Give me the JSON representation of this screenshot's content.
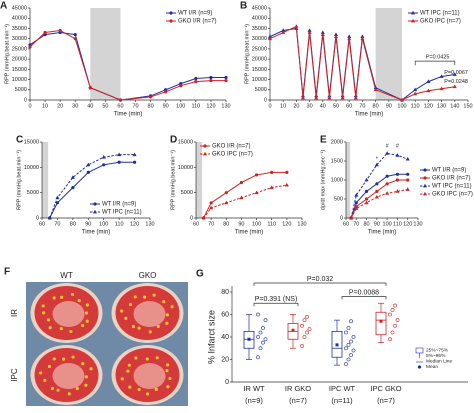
{
  "chart_data": [
    {
      "type": "line",
      "label": "A",
      "xlabel": "Time (min)",
      "ylabel": "RPP (mmHg.beat.min⁻¹)",
      "xlim": [
        0,
        130
      ],
      "xticks": [
        0,
        10,
        20,
        30,
        40,
        50,
        60,
        70,
        80,
        90,
        100,
        110,
        120,
        130
      ],
      "ylim": [
        0,
        45000
      ],
      "yticks": [
        0,
        5000,
        10000,
        15000,
        20000,
        25000,
        30000,
        35000,
        40000,
        45000
      ],
      "shade": [
        40,
        60
      ],
      "legend": "upper right",
      "x": [
        0,
        10,
        20,
        30,
        40,
        60,
        80,
        90,
        100,
        110,
        120,
        130
      ],
      "series": [
        {
          "name": "WT I/R (n=9)",
          "color": "#1f2fa8",
          "dashed": false,
          "marker": "circle",
          "values": [
            27000,
            32000,
            33000,
            32000,
            6000,
            0,
            2000,
            5000,
            8000,
            10500,
            11000,
            11000
          ]
        },
        {
          "name": "GKO I/R (n=7)",
          "color": "#d42020",
          "dashed": false,
          "marker": "circle",
          "values": [
            26000,
            33000,
            34000,
            30000,
            6000,
            0,
            1500,
            4000,
            7000,
            9000,
            9500,
            9500
          ]
        }
      ],
      "annotations": []
    },
    {
      "type": "line",
      "label": "B",
      "xlabel": "Time (min)",
      "ylabel": "RPP (mmHg.beat.min⁻¹)",
      "xlim": [
        0,
        150
      ],
      "xticks": [
        0,
        10,
        20,
        30,
        40,
        50,
        60,
        70,
        80,
        90,
        100,
        110,
        120,
        130,
        140,
        150
      ],
      "ylim": [
        0,
        45000
      ],
      "yticks": [
        0,
        5000,
        10000,
        15000,
        20000,
        25000,
        30000,
        35000,
        40000,
        45000
      ],
      "shade": [
        80,
        100
      ],
      "legend": "upper right",
      "x": [
        0,
        10,
        20,
        25,
        30,
        35,
        40,
        45,
        50,
        55,
        60,
        65,
        70,
        80,
        100,
        110,
        120,
        130,
        140
      ],
      "series": [
        {
          "name": "WT IPC (n=11)",
          "color": "#1f2fa8",
          "dashed": false,
          "marker": "triangle",
          "values": [
            31000,
            34000,
            35000,
            2000,
            34000,
            2000,
            33000,
            2000,
            32000,
            2000,
            31000,
            2000,
            31000,
            6000,
            0,
            5000,
            9000,
            11500,
            12500
          ]
        },
        {
          "name": "GKO IPC (n=7)",
          "color": "#d42020",
          "dashed": false,
          "marker": "triangle",
          "values": [
            30000,
            33000,
            36000,
            1000,
            33000,
            1000,
            32000,
            1000,
            31000,
            1000,
            30000,
            1000,
            30000,
            5000,
            0,
            3000,
            4500,
            5500,
            6500
          ]
        }
      ],
      "annotations": [
        "P=0.0425",
        "P=0.0067",
        "P=0.0248"
      ]
    },
    {
      "type": "line",
      "label": "C",
      "xlabel": "Time (min)",
      "ylabel": "RPP (mmHg.beat.min⁻¹)",
      "xlim": [
        60,
        130
      ],
      "xticks": [
        60,
        70,
        80,
        90,
        100,
        110,
        120,
        130
      ],
      "ylim": [
        0,
        15000
      ],
      "yticks": [
        0,
        5000,
        10000,
        15000
      ],
      "shade": [
        60,
        64
      ],
      "legend": "lower right",
      "x": [
        65,
        70,
        80,
        90,
        100,
        110,
        120
      ],
      "series": [
        {
          "name": "WT I/R (n=9)",
          "color": "#1f2fa8",
          "dashed": false,
          "marker": "circle",
          "values": [
            0,
            3000,
            6000,
            9000,
            10500,
            11000,
            11000
          ]
        },
        {
          "name": "WT IPC (n=11)",
          "color": "#1f2fa8",
          "dashed": true,
          "marker": "triangle",
          "values": [
            0,
            4000,
            8000,
            10500,
            12000,
            12500,
            12500
          ]
        }
      ],
      "annotations": []
    },
    {
      "type": "line",
      "label": "D",
      "xlabel": "Time (min)",
      "ylabel": "RPP (mmHg.beat.min⁻¹)",
      "xlim": [
        60,
        130
      ],
      "xticks": [
        60,
        70,
        80,
        90,
        100,
        110,
        120,
        130
      ],
      "ylim": [
        0,
        15000
      ],
      "yticks": [
        0,
        5000,
        10000,
        15000
      ],
      "shade": [
        60,
        64
      ],
      "legend": "upper left",
      "x": [
        65,
        70,
        80,
        90,
        100,
        110,
        120
      ],
      "series": [
        {
          "name": "GKO I/R (n=7)",
          "color": "#d42020",
          "dashed": false,
          "marker": "circle",
          "values": [
            0,
            3000,
            5000,
            7000,
            8500,
            9000,
            9000
          ]
        },
        {
          "name": "GKO IPC (n=7)",
          "color": "#d42020",
          "dashed": true,
          "marker": "triangle",
          "values": [
            0,
            2000,
            3000,
            4000,
            5000,
            6000,
            6500
          ]
        }
      ],
      "annotations": []
    },
    {
      "type": "line",
      "label": "E",
      "xlabel": "Time (min)",
      "ylabel": "dp/dt max (mmHg.sec⁻¹)",
      "xlim": [
        60,
        130
      ],
      "xticks": [
        60,
        70,
        80,
        90,
        100,
        110,
        120,
        130
      ],
      "ylim": [
        0,
        2000
      ],
      "yticks": [
        0,
        500,
        1000,
        1500,
        2000
      ],
      "shade": [
        60,
        64
      ],
      "legend": "right",
      "x": [
        65,
        70,
        80,
        90,
        100,
        110,
        120
      ],
      "series": [
        {
          "name": "WT I/R (n=9)",
          "color": "#1f2fa8",
          "dashed": false,
          "marker": "circle",
          "values": [
            0,
            400,
            700,
            900,
            1100,
            1150,
            1150
          ]
        },
        {
          "name": "GKO I/R (n=7)",
          "color": "#d42020",
          "dashed": false,
          "marker": "circle",
          "values": [
            0,
            300,
            500,
            700,
            900,
            1000,
            1000
          ]
        },
        {
          "name": "WT IPC (n=11)",
          "color": "#1f2fa8",
          "dashed": true,
          "marker": "triangle",
          "values": [
            0,
            600,
            1000,
            1400,
            1700,
            1650,
            1550
          ]
        },
        {
          "name": "GKO IPC (n=7)",
          "color": "#d42020",
          "dashed": true,
          "marker": "triangle",
          "values": [
            0,
            250,
            400,
            550,
            650,
            700,
            750
          ]
        }
      ],
      "annotations": [
        "#",
        "#",
        "*"
      ]
    },
    {
      "type": "image",
      "label": "F",
      "columns": [
        "WT",
        "GKO"
      ],
      "rows": [
        "IR",
        "IPC"
      ]
    },
    {
      "type": "box",
      "label": "G",
      "ylabel": "% Infarct size",
      "ylim": [
        0,
        80
      ],
      "yticks": [
        0,
        20,
        40,
        60,
        80
      ],
      "categories": [
        "IR WT",
        "IR GKO",
        "IPC WT",
        "IPC GKO"
      ],
      "counts": [
        "(n=9)",
        "(n=7)",
        "(n=11)",
        "(n=7)"
      ],
      "colors": [
        "#1f2fa8",
        "#d42020",
        "#1f2fa8",
        "#d42020"
      ],
      "boxes": [
        {
          "low": 20,
          "q1": 30,
          "median": 38,
          "q3": 45,
          "high": 60,
          "mean": 38,
          "points": [
            22,
            30,
            35,
            38,
            40,
            44,
            48,
            55,
            60
          ]
        },
        {
          "low": 30,
          "q1": 38,
          "median": 45,
          "q3": 52,
          "high": 60,
          "mean": 46,
          "points": [
            32,
            40,
            44,
            47,
            50,
            55,
            58
          ]
        },
        {
          "low": 15,
          "q1": 22,
          "median": 30,
          "q3": 45,
          "high": 55,
          "mean": 33,
          "points": [
            16,
            20,
            24,
            28,
            30,
            33,
            36,
            40,
            44,
            48,
            54
          ]
        },
        {
          "low": 35,
          "q1": 42,
          "median": 55,
          "q3": 62,
          "high": 70,
          "mean": 54,
          "points": [
            38,
            44,
            50,
            55,
            60,
            64,
            68
          ]
        }
      ],
      "legend_items": [
        "25%~75%",
        "5%~95%",
        "Median Line",
        "Mean"
      ],
      "annotations": [
        "P=0.032",
        "P=0.391 (NS)",
        "P=0.0088"
      ]
    }
  ]
}
